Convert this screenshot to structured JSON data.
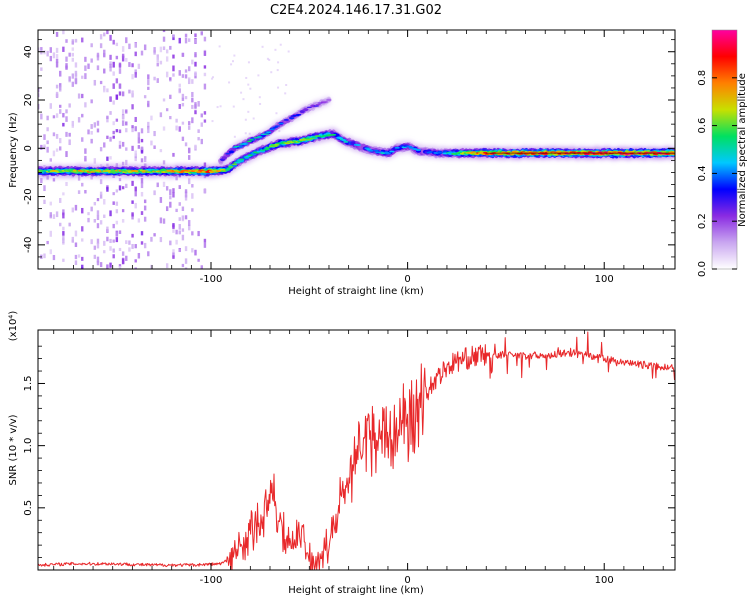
{
  "title": "C2E4.2024.146.17.31.G02",
  "colors": {
    "snr_line": "#e8282a",
    "colormap": [
      "#ffffff",
      "#c9a6f0",
      "#8a2be2",
      "#0000ff",
      "#00c8ff",
      "#00e060",
      "#c8e000",
      "#ff8000",
      "#ff0000",
      "#ff00a0"
    ]
  },
  "chart_data": [
    {
      "type": "heatmap",
      "name": "spectrogram",
      "xlabel": "Height of straight line (km)",
      "ylabel": "Frequency (Hz)",
      "xlim": [
        -188,
        136
      ],
      "ylim": [
        -50,
        49
      ],
      "x_ticks": [
        -100,
        0,
        100
      ],
      "x_tick_labels": [
        "-100",
        "0",
        "100"
      ],
      "y_ticks": [
        -40,
        -20,
        0,
        20,
        40
      ],
      "y_tick_labels": [
        "-40",
        "-20",
        "0",
        "20",
        "40"
      ],
      "grid": false,
      "colorbar": {
        "label": "Normalized spectral amplitude",
        "range": [
          0,
          1
        ],
        "ticks": [
          0.0,
          0.2,
          0.4,
          0.6,
          0.8
        ],
        "tick_labels": [
          "0.0",
          "0.2",
          "0.4",
          "0.6",
          "0.8"
        ]
      },
      "main_trace": {
        "x": [
          -188,
          -160,
          -130,
          -100,
          -92,
          -85,
          -75,
          -65,
          -55,
          -45,
          -38,
          -32,
          -25,
          -18,
          -10,
          -5,
          0,
          5,
          15,
          40,
          80,
          100,
          136
        ],
        "y": [
          -9.5,
          -9.5,
          -9.5,
          -9.5,
          -9,
          -5,
          -1,
          2,
          3,
          5,
          6,
          3,
          1,
          -1,
          -2,
          0,
          1,
          -1,
          -2,
          -2,
          -2,
          -2,
          -2
        ],
        "peak_amplitude": [
          0.6,
          0.7,
          0.65,
          0.8,
          0.6,
          0.5,
          0.5,
          0.6,
          0.6,
          0.55,
          0.5,
          0.45,
          0.45,
          0.4,
          0.45,
          0.4,
          0.4,
          0.4,
          0.4,
          0.8,
          0.85,
          0.85,
          0.9
        ]
      },
      "secondary_trace": {
        "x": [
          -95,
          -88,
          -80,
          -72,
          -65,
          -58,
          -52,
          -46,
          -40
        ],
        "y": [
          -5,
          0,
          3,
          6,
          10,
          13,
          16,
          18,
          20
        ],
        "peak_amplitude": [
          0.35,
          0.45,
          0.5,
          0.45,
          0.4,
          0.35,
          0.3,
          0.25,
          0.2
        ]
      },
      "noise_region_x": [
        -188,
        -102
      ]
    },
    {
      "type": "line",
      "name": "snr",
      "xlabel": "Height of straight line (km)",
      "ylabel": "SNR (10 * v/v)",
      "y_multiplier": "(x10⁴)",
      "xlim": [
        -188,
        136
      ],
      "ylim": [
        0,
        1.93
      ],
      "x_ticks": [
        -100,
        0,
        100
      ],
      "x_tick_labels": [
        "-100",
        "0",
        "100"
      ],
      "y_ticks": [
        0.5,
        1.0,
        1.5
      ],
      "y_tick_labels": [
        "0.5",
        "1.0",
        "1.5"
      ],
      "grid": false,
      "series": [
        {
          "x": [
            -188,
            -170,
            -150,
            -130,
            -110,
            -95,
            -90,
            -85,
            -80,
            -75,
            -72,
            -69,
            -66,
            -63,
            -60,
            -57,
            -54,
            -51,
            -48,
            -45,
            -42,
            -38,
            -34,
            -30,
            -26,
            -22,
            -18,
            -14,
            -10,
            -5,
            0,
            5,
            10,
            15,
            20,
            25,
            30,
            35,
            40,
            50,
            60,
            70,
            80,
            90,
            100,
            110,
            120,
            130,
            136
          ],
          "y": [
            0.04,
            0.05,
            0.05,
            0.04,
            0.04,
            0.05,
            0.09,
            0.18,
            0.3,
            0.38,
            0.5,
            0.65,
            0.45,
            0.3,
            0.18,
            0.2,
            0.38,
            0.1,
            0.05,
            0.08,
            0.15,
            0.3,
            0.55,
            0.75,
            0.9,
            1.0,
            1.05,
            1.1,
            1.08,
            1.15,
            1.2,
            1.3,
            1.45,
            1.55,
            1.63,
            1.68,
            1.7,
            1.72,
            1.73,
            1.73,
            1.72,
            1.73,
            1.74,
            1.73,
            1.7,
            1.66,
            1.65,
            1.63,
            1.63
          ]
        }
      ]
    }
  ]
}
